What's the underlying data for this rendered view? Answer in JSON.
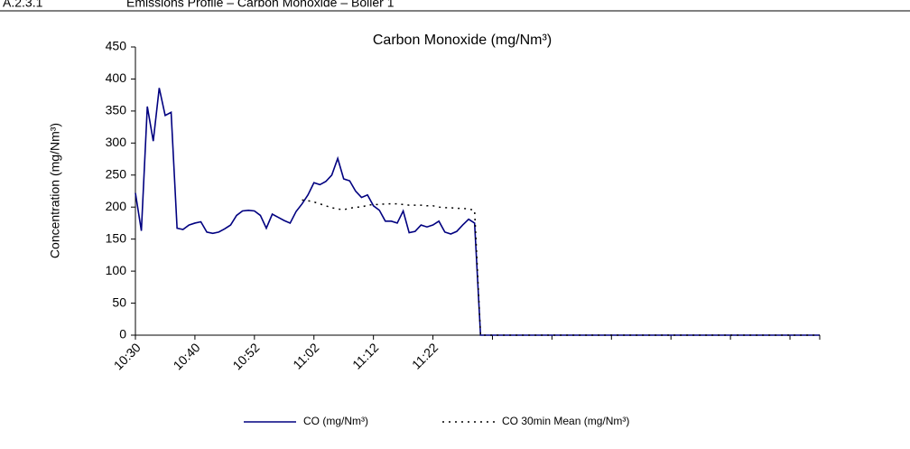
{
  "header": {
    "section": "A.2.3.1",
    "title": "Emissions Profile – Carbon Monoxide – Boiler 1"
  },
  "chart_data": {
    "type": "line",
    "title": "Carbon Monoxide (mg/Nm³)",
    "y_label": "Concentration (mg/Nm³)",
    "categories": [
      "10:30",
      null,
      null,
      null,
      null,
      null,
      null,
      null,
      null,
      null,
      "10:40",
      null,
      null,
      null,
      null,
      null,
      null,
      null,
      null,
      null,
      "10:52",
      null,
      null,
      null,
      null,
      null,
      null,
      null,
      null,
      null,
      "11:02",
      null,
      null,
      null,
      null,
      null,
      null,
      null,
      null,
      null,
      "11:12",
      null,
      null,
      null,
      null,
      null,
      null,
      null,
      null,
      null,
      "11:22",
      null,
      null,
      null,
      null,
      null,
      null,
      null,
      null,
      null,
      null,
      null,
      null,
      null,
      null,
      null,
      null,
      null,
      null,
      null,
      null,
      null,
      null,
      null,
      null,
      null,
      null,
      null,
      null,
      null,
      null,
      null,
      null,
      null,
      null,
      null,
      null,
      null,
      null,
      null,
      null,
      null,
      null,
      null,
      null,
      null,
      null,
      null,
      null,
      null,
      null,
      null,
      null,
      null,
      null,
      null,
      null,
      null,
      null,
      null,
      null,
      null,
      null,
      null,
      null,
      null
    ],
    "series": [
      {
        "name": "CO (mg/Nm³)",
        "color": "#000080",
        "dash": "solid",
        "values": [
          222,
          163,
          357,
          303,
          386,
          343,
          348,
          167,
          165,
          172,
          175,
          177,
          161,
          159,
          161,
          166,
          172,
          187,
          194,
          195,
          194,
          187,
          167,
          189,
          184,
          179,
          175,
          193,
          205,
          219,
          238,
          235,
          240,
          250,
          276,
          244,
          241,
          225,
          215,
          219,
          202,
          195,
          178,
          178,
          175,
          194,
          160,
          162,
          172,
          169,
          172,
          178,
          161,
          158,
          162,
          172,
          181,
          175,
          0,
          0,
          0,
          0,
          0,
          0,
          0,
          0,
          0,
          0,
          0,
          0,
          0,
          0,
          0,
          0,
          0,
          0,
          0,
          0,
          0,
          0,
          0,
          0,
          0,
          0,
          0,
          0,
          0,
          0,
          0,
          0,
          0,
          0,
          0,
          0,
          0,
          0,
          0,
          0,
          0,
          0,
          0,
          0,
          0,
          0,
          0,
          0,
          0,
          0,
          0,
          0,
          0,
          0,
          0,
          0,
          0,
          0
        ]
      },
      {
        "name": "CO 30min Mean (mg/Nm³)",
        "color": "#000000",
        "dash": "dotted",
        "values": [
          null,
          null,
          null,
          null,
          null,
          null,
          null,
          null,
          null,
          null,
          null,
          null,
          null,
          null,
          null,
          null,
          null,
          null,
          null,
          null,
          null,
          null,
          null,
          null,
          null,
          null,
          null,
          null,
          211,
          210,
          208,
          205,
          202,
          199,
          197,
          196,
          198,
          200,
          200,
          203,
          204,
          204,
          205,
          205,
          205,
          204,
          203,
          203,
          203,
          202,
          202,
          200,
          199,
          199,
          198,
          198,
          197,
          195,
          0,
          0,
          0,
          0,
          0,
          0,
          0,
          0,
          0,
          0,
          0,
          0,
          0,
          0,
          0,
          0,
          0,
          0,
          0,
          0,
          0,
          0,
          0,
          0,
          0,
          0,
          0,
          0,
          0,
          0,
          0,
          0,
          0,
          0,
          0,
          0,
          0,
          0,
          0,
          0,
          0,
          0,
          0,
          0,
          0,
          0,
          0,
          0,
          0,
          0,
          0,
          0,
          0,
          0,
          0,
          0,
          0,
          0
        ]
      }
    ],
    "ylim": [
      0,
      450
    ],
    "yticks": [
      0,
      50,
      100,
      150,
      200,
      250,
      300,
      350,
      400,
      450
    ],
    "grid": false,
    "legend": "bottom"
  }
}
